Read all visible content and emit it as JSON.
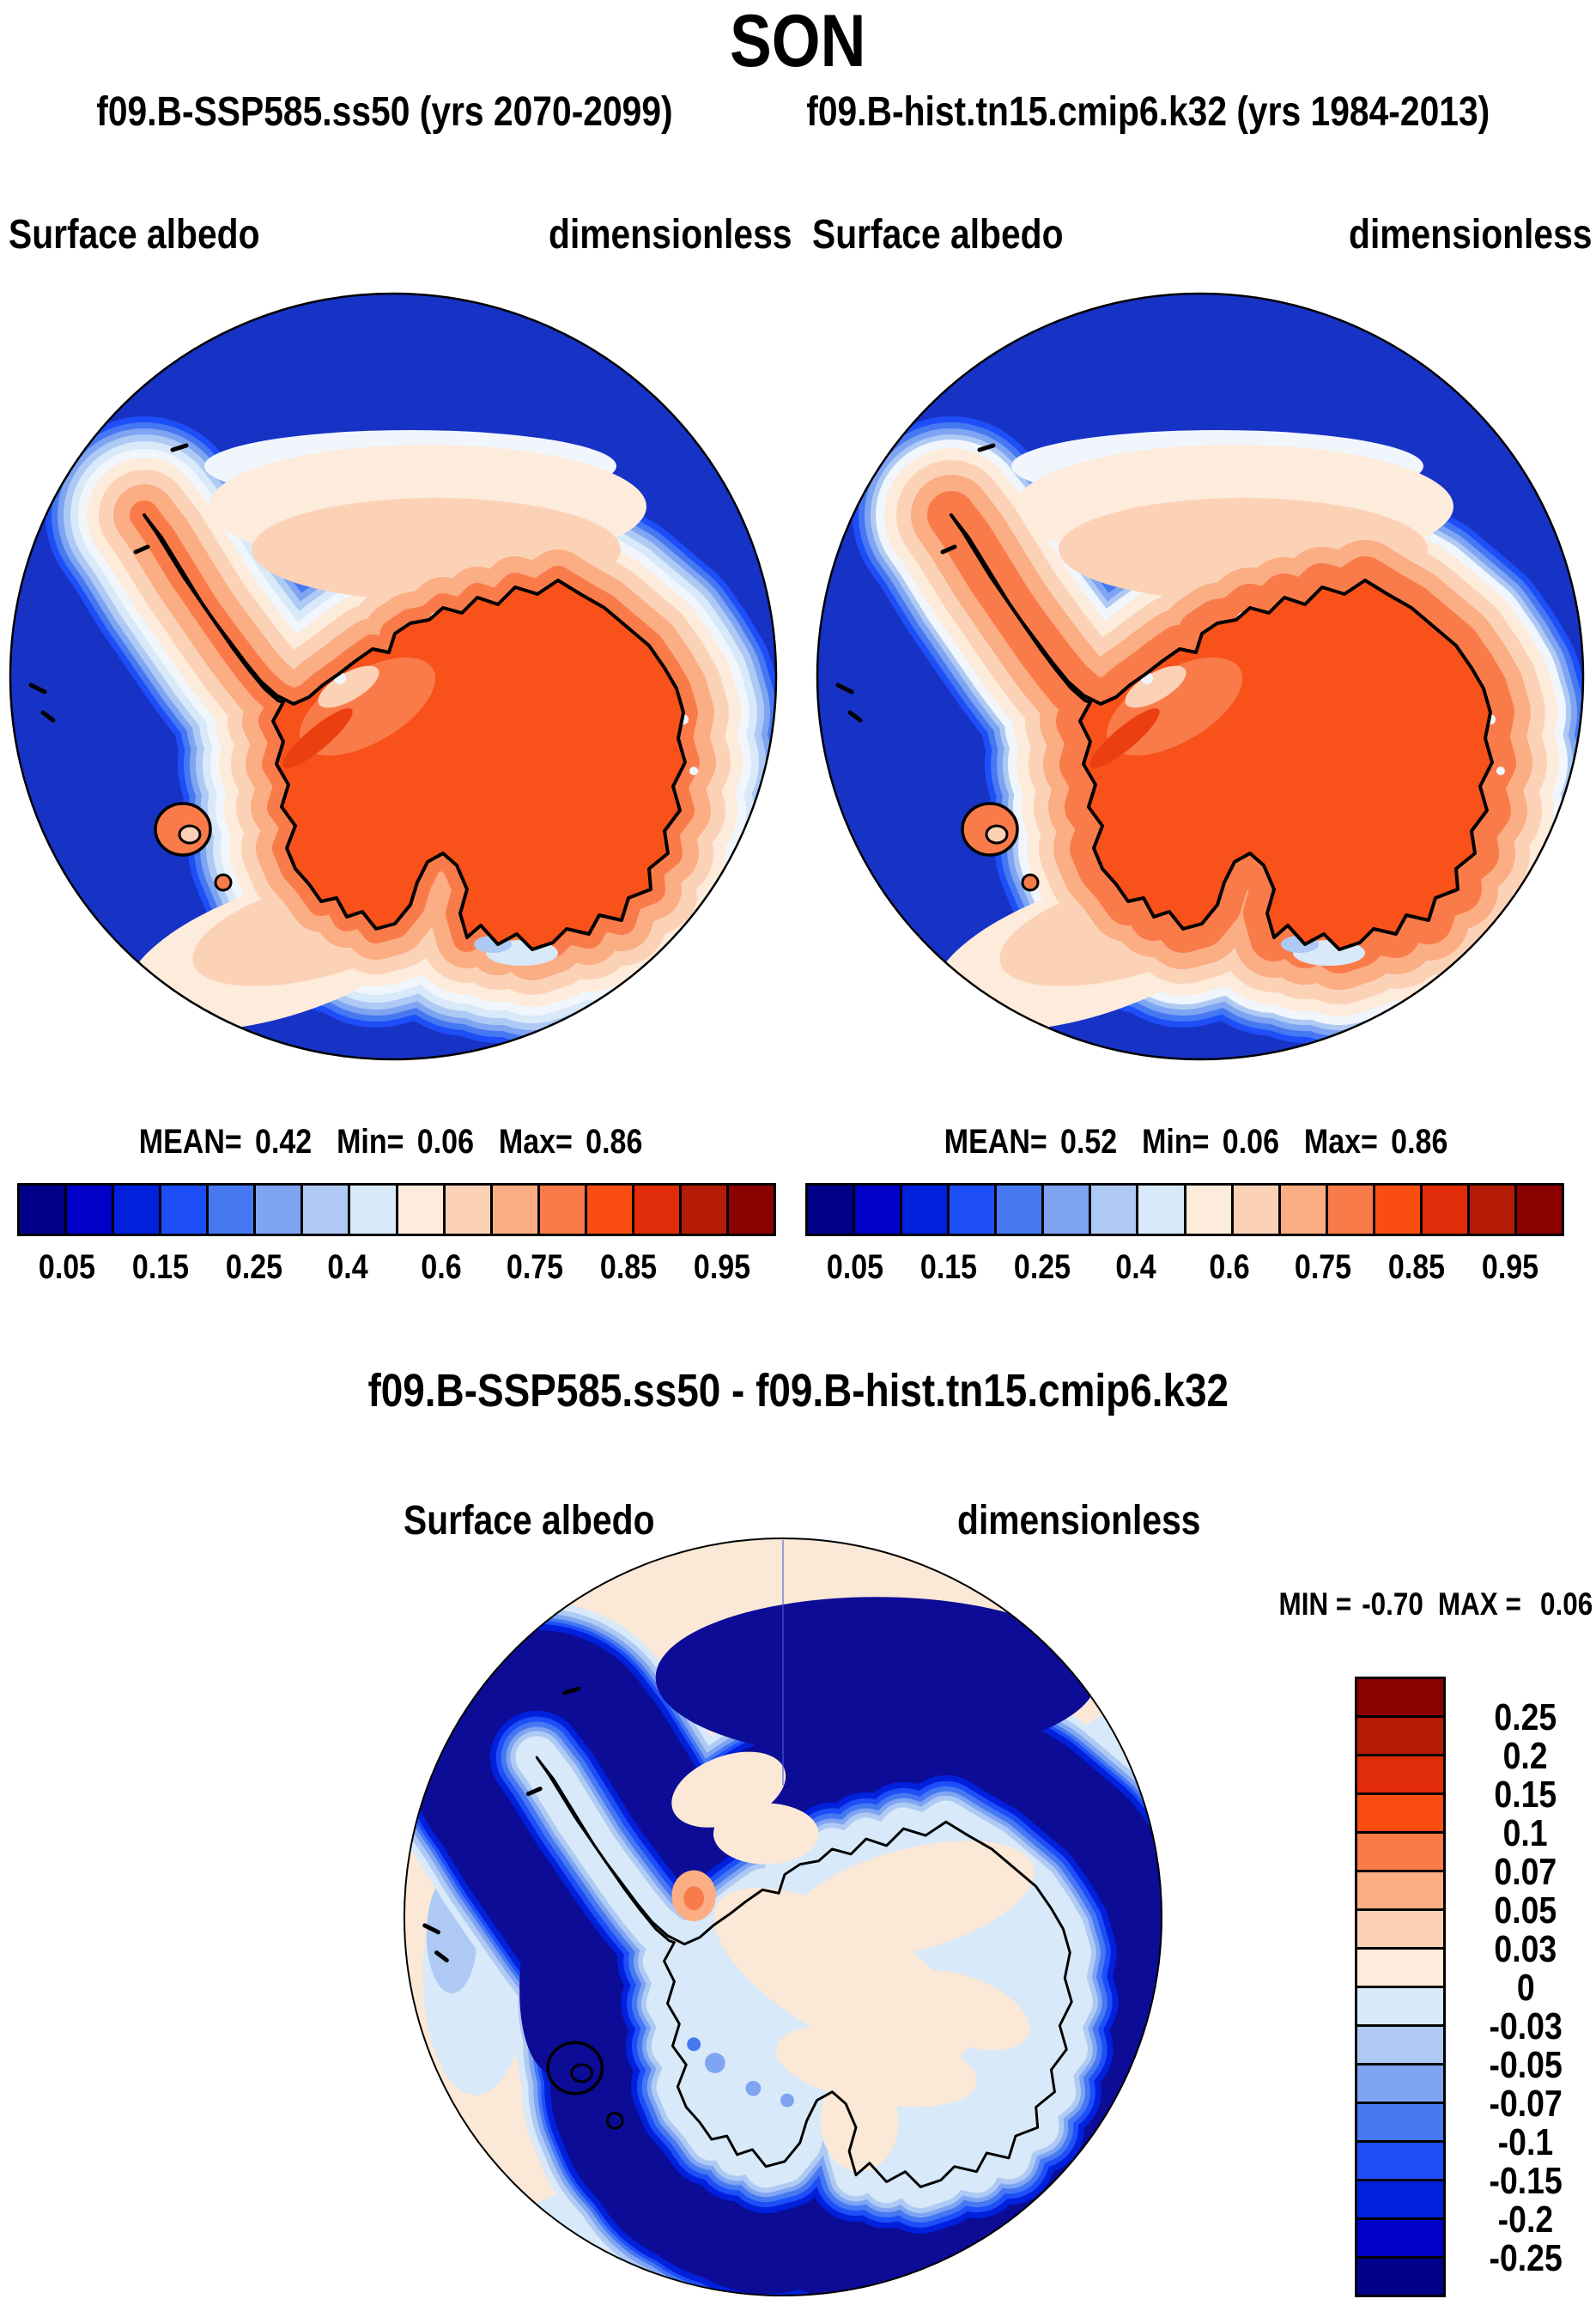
{
  "header": {
    "title": "SON",
    "run_left": "f09.B-SSP585.ss50 (yrs 2070-2099)",
    "run_right": "f09.B-hist.tn15.cmip6.k32 (yrs 1984-2013)"
  },
  "panel_left": {
    "var_label": "Surface albedo",
    "units": "dimensionless",
    "mean_label": "MEAN=",
    "mean": "0.42",
    "min_label": "Min=",
    "min": "0.06",
    "max_label": "Max=",
    "max": "0.86"
  },
  "panel_right": {
    "var_label": "Surface albedo",
    "units": "dimensionless",
    "mean_label": "MEAN=",
    "mean": "0.52",
    "min_label": "Min=",
    "min": "0.06",
    "max_label": "Max=",
    "max": "0.86"
  },
  "colorbar": {
    "ticks": [
      "0.05",
      "0.15",
      "0.25",
      "0.4",
      "0.6",
      "0.75",
      "0.85",
      "0.95"
    ],
    "colors": [
      "#00008B",
      "#0000C8",
      "#0020DC",
      "#1E4EF8",
      "#4678F2",
      "#7EA4F2",
      "#AECAF4",
      "#D8E9F9",
      "#FDEBDB",
      "#FCD2B7",
      "#FBAD84",
      "#FA7B4A",
      "#F94D12",
      "#E02C08",
      "#B51C05",
      "#8B0000"
    ]
  },
  "diff": {
    "title": "f09.B-SSP585.ss50 - f09.B-hist.tn15.cmip6.k32",
    "var_label": "Surface albedo",
    "units": "dimensionless",
    "min_label": "MIN =",
    "min": "-0.70",
    "max_label": "MAX =",
    "max": "0.06",
    "ticks": [
      "0.25",
      "0.2",
      "0.15",
      "0.1",
      "0.07",
      "0.05",
      "0.03",
      "0",
      "-0.03",
      "-0.05",
      "-0.07",
      "-0.1",
      "-0.15",
      "-0.2",
      "-0.25"
    ]
  },
  "map_colors": {
    "ocean": "#1733C6",
    "land": "#F8511A",
    "navy_ring": "#0C0C96",
    "white_band": "#F1F6FD",
    "diff_background": "#FBE8D6",
    "diff_interior": "#D8E9F9"
  },
  "chart_data": {
    "type": "heatmap",
    "title": "SON",
    "subtitle": "f09.B-SSP585.ss50 (yrs 2070-2099)  f09.B-hist.tn15.cmip6.k32 (yrs 1984-2013)",
    "projection": "Antarctic south polar stereographic",
    "panels": [
      {
        "name": "f09.B-SSP585.ss50",
        "years": "2070-2099",
        "variable": "Surface albedo",
        "units": "dimensionless",
        "mean": 0.42,
        "min": 0.06,
        "max": 0.86,
        "colorbar": "horizontal, 16 colors blue-to-red"
      },
      {
        "name": "f09.B-hist.tn15.cmip6.k32",
        "years": "1984-2013",
        "variable": "Surface albedo",
        "units": "dimensionless",
        "mean": 0.52,
        "min": 0.06,
        "max": 0.86,
        "colorbar": "horizontal, 16 colors blue-to-red"
      },
      {
        "name": "f09.B-SSP585.ss50 - f09.B-hist.tn15.cmip6.k32",
        "variable": "Surface albedo difference",
        "units": "dimensionless",
        "min": -0.7,
        "max": 0.06,
        "colorbar": "vertical, 16 colors red-to-blue top-to-bottom"
      }
    ],
    "contour_levels_albedo": [
      0.05,
      0.1,
      0.15,
      0.2,
      0.25,
      0.3,
      0.4,
      0.5,
      0.6,
      0.7,
      0.75,
      0.8,
      0.85,
      0.9,
      0.95
    ],
    "labeled_ticks_albedo": [
      0.05,
      0.15,
      0.25,
      0.4,
      0.6,
      0.75,
      0.85,
      0.95
    ],
    "contour_levels_diff": [
      -0.25,
      -0.2,
      -0.15,
      -0.1,
      -0.07,
      -0.05,
      -0.03,
      0,
      0.03,
      0.05,
      0.07,
      0.1,
      0.15,
      0.2,
      0.25
    ],
    "legend_position": "albedo colorbars below maps; difference colorbar right of map"
  }
}
